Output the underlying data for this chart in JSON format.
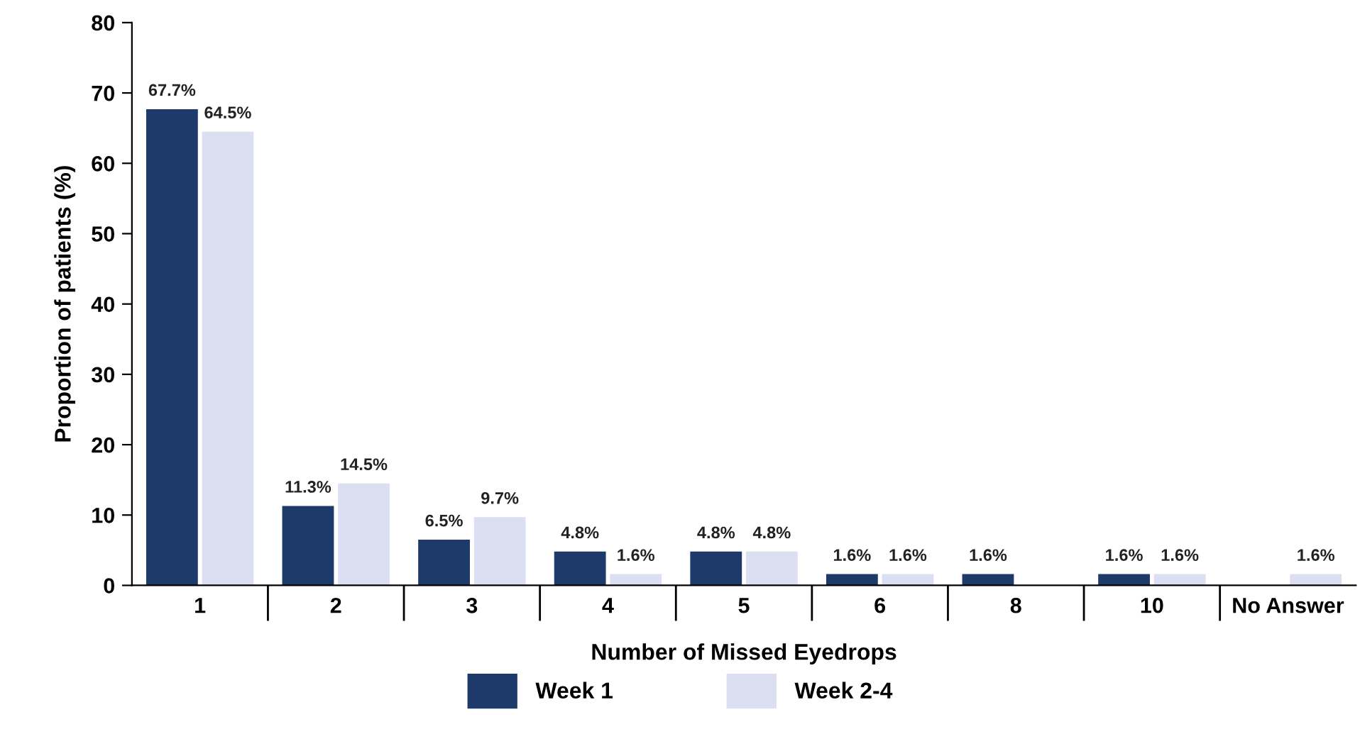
{
  "chart_data": {
    "type": "bar",
    "xlabel": "Number of Missed Eyedrops",
    "ylabel": "Proportion of patients (%)",
    "categories": [
      "1",
      "2",
      "3",
      "4",
      "5",
      "6",
      "8",
      "10",
      "No Answer"
    ],
    "series": [
      {
        "name": "Week 1",
        "color": "#1d3a6b",
        "values": [
          67.7,
          11.3,
          6.5,
          4.8,
          4.8,
          1.6,
          1.6,
          1.6,
          null
        ],
        "value_labels": [
          "67.7%",
          "11.3%",
          "6.5%",
          "4.8%",
          "4.8%",
          "1.6%",
          "1.6%",
          "1.6%",
          null
        ]
      },
      {
        "name": "Week 2-4",
        "color": "#dcdff2",
        "values": [
          64.5,
          14.5,
          9.7,
          1.6,
          4.8,
          1.6,
          null,
          1.6,
          1.6
        ],
        "value_labels": [
          "64.5%",
          "14.5%",
          "9.7%",
          "1.6%",
          "4.8%",
          "1.6%",
          null,
          "1.6%",
          "1.6%"
        ]
      }
    ],
    "ylim": [
      0,
      80
    ],
    "yticks": [
      0,
      10,
      20,
      30,
      40,
      50,
      60,
      70,
      80
    ],
    "grid": false,
    "legend": "bottom"
  }
}
